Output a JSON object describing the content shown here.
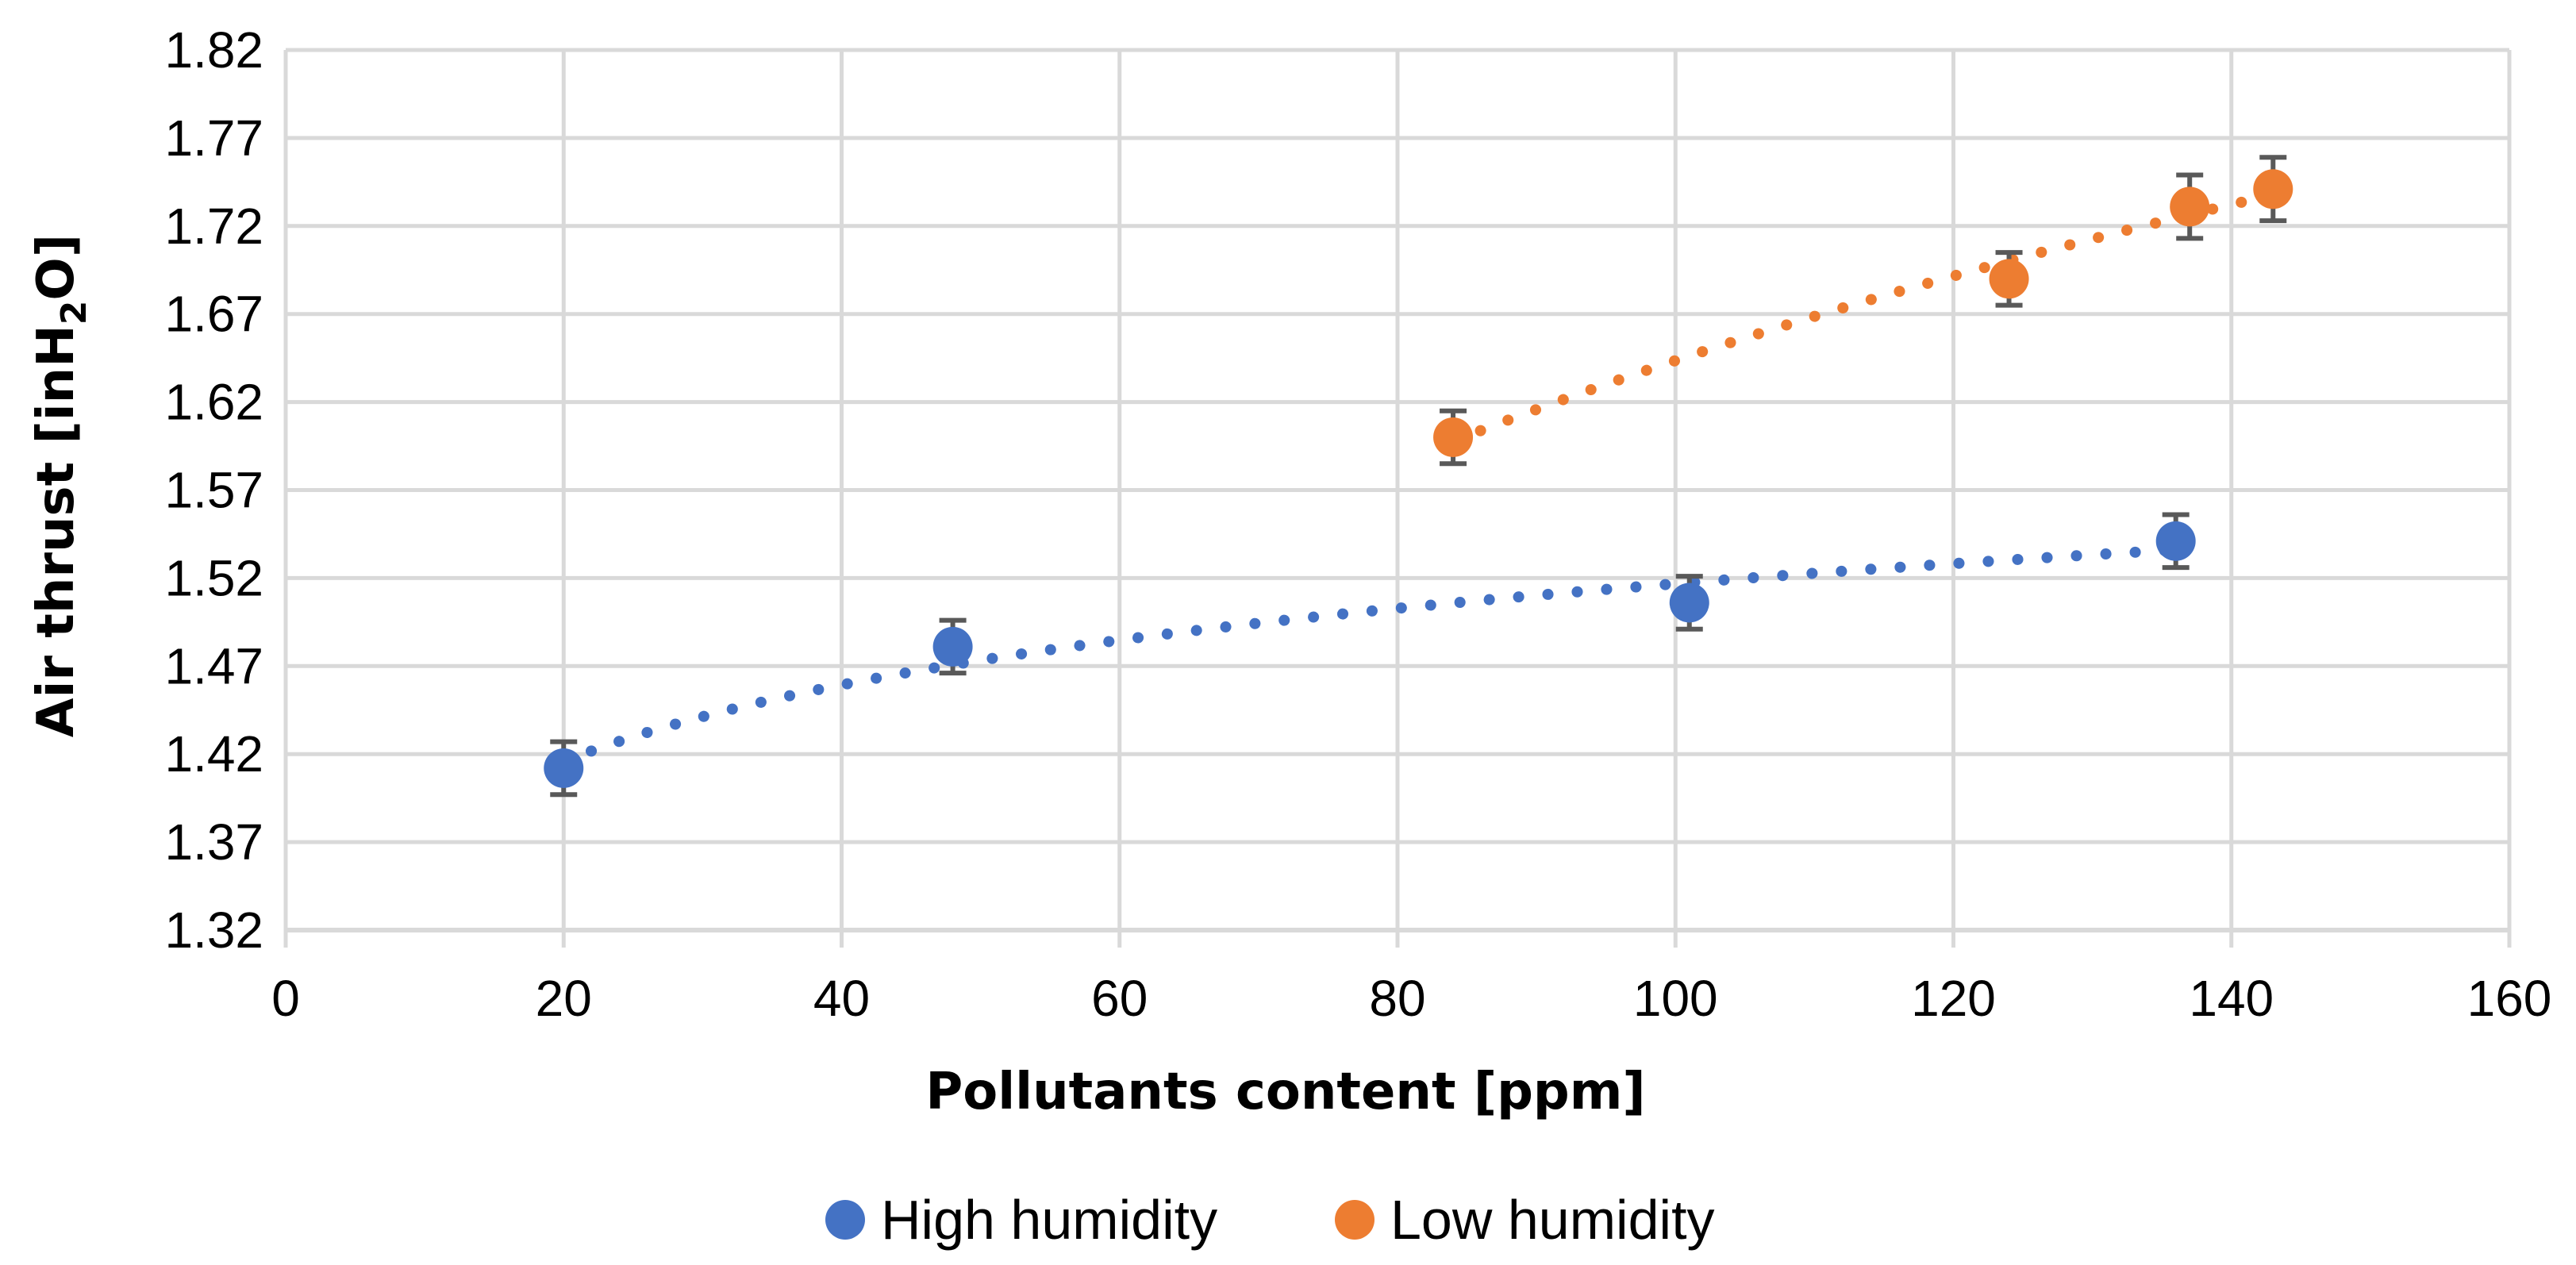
{
  "chart_data": {
    "type": "scatter",
    "title": "",
    "xlabel": "Pollutants content [ppm]",
    "ylabel": {
      "prefix": "Air thrust [inH",
      "subscript": "2",
      "suffix": "O]"
    },
    "xlim": [
      0,
      160
    ],
    "ylim": [
      1.32,
      1.82
    ],
    "x_ticks": [
      0,
      20,
      40,
      60,
      80,
      100,
      120,
      140,
      160
    ],
    "x_tick_labels": [
      "0",
      "20",
      "40",
      "60",
      "80",
      "100",
      "120",
      "140",
      "160"
    ],
    "y_ticks": [
      1.32,
      1.37,
      1.42,
      1.47,
      1.52,
      1.57,
      1.62,
      1.67,
      1.72,
      1.77,
      1.82
    ],
    "y_tick_labels": [
      "1.32",
      "1.37",
      "1.42",
      "1.47",
      "1.52",
      "1.57",
      "1.62",
      "1.67",
      "1.72",
      "1.77",
      "1.82"
    ],
    "grid": true,
    "legend_position": "bottom",
    "series": [
      {
        "name": "High humidity",
        "color": "#4472C4",
        "x": [
          20,
          48,
          101,
          136
        ],
        "y": [
          1.412,
          1.481,
          1.506,
          1.541
        ],
        "error": [
          0.015,
          0.015,
          0.015,
          0.015
        ],
        "trendline": {
          "type": "logarithmic",
          "dotted": true,
          "x_start": 20,
          "x_end": 136
        }
      },
      {
        "name": "Low humidity",
        "color": "#ED7D31",
        "x": [
          84,
          124,
          137,
          143
        ],
        "y": [
          1.6,
          1.69,
          1.731,
          1.741
        ],
        "error": [
          0.015,
          0.015,
          0.018,
          0.018
        ],
        "trendline": {
          "type": "logarithmic",
          "dotted": true,
          "x_start": 84,
          "x_end": 143
        }
      }
    ]
  },
  "colors": {
    "grid": "#D9D9D9",
    "axis": "#D9D9D9",
    "error_bar": "#595959"
  }
}
